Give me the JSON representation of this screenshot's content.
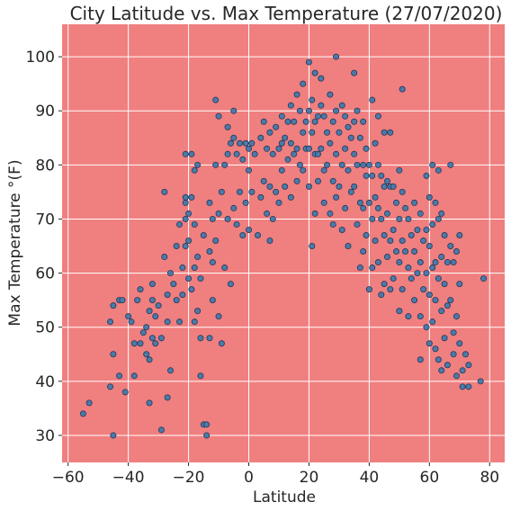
{
  "chart_data": {
    "type": "scatter",
    "title": "City Latitude vs. Max Temperature (27/07/2020)",
    "xlabel": "Latitude",
    "ylabel": "Max Temperature °(F)",
    "xlim": [
      -62,
      85
    ],
    "ylim": [
      25,
      106
    ],
    "xticks": [
      -60,
      -40,
      -20,
      0,
      20,
      40,
      60,
      80
    ],
    "yticks": [
      30,
      40,
      50,
      60,
      70,
      80,
      90,
      100
    ],
    "xtick_labels": [
      "−60",
      "−40",
      "−20",
      "0",
      "20",
      "40",
      "60",
      "80"
    ],
    "ytick_labels": [
      "30",
      "40",
      "50",
      "60",
      "70",
      "80",
      "90",
      "100"
    ],
    "grid": true,
    "colors": {
      "plot_background": "#f07f7f",
      "marker": "#4e79a7",
      "marker_edge": "#1f3a5c",
      "grid": "#ffffff"
    },
    "series": [
      {
        "points": [
          [
            -55,
            34
          ],
          [
            -53,
            36
          ],
          [
            -46,
            39
          ],
          [
            -46,
            51
          ],
          [
            -45,
            54
          ],
          [
            -45,
            45
          ],
          [
            -45,
            30
          ],
          [
            -43,
            55
          ],
          [
            -43,
            41
          ],
          [
            -42,
            55
          ],
          [
            -41,
            38
          ],
          [
            -40,
            52
          ],
          [
            -39,
            51
          ],
          [
            -38,
            47
          ],
          [
            -38,
            41
          ],
          [
            -37,
            55
          ],
          [
            -36,
            57
          ],
          [
            -36,
            47
          ],
          [
            -35,
            49
          ],
          [
            -34,
            50
          ],
          [
            -34,
            45
          ],
          [
            -33,
            53
          ],
          [
            -33,
            44
          ],
          [
            -33,
            36
          ],
          [
            -32,
            58
          ],
          [
            -32,
            55
          ],
          [
            -32,
            48
          ],
          [
            -31,
            52
          ],
          [
            -31,
            47
          ],
          [
            -30,
            54
          ],
          [
            -29,
            48
          ],
          [
            -28,
            63
          ],
          [
            -27,
            56
          ],
          [
            -27,
            51
          ],
          [
            -26,
            42
          ],
          [
            -28,
            75
          ],
          [
            -29,
            31
          ],
          [
            -27,
            37
          ],
          [
            -26,
            60
          ],
          [
            -25,
            58
          ],
          [
            -24,
            65
          ],
          [
            -24,
            55
          ],
          [
            -23,
            69
          ],
          [
            -23,
            51
          ],
          [
            -22,
            61
          ],
          [
            -22,
            56
          ],
          [
            -21,
            82
          ],
          [
            -21,
            74
          ],
          [
            -21,
            73
          ],
          [
            -21,
            70
          ],
          [
            -21,
            65
          ],
          [
            -20,
            71
          ],
          [
            -20,
            66
          ],
          [
            -20,
            59
          ],
          [
            -19,
            82
          ],
          [
            -19,
            74
          ],
          [
            -19,
            57
          ],
          [
            -18,
            79
          ],
          [
            -18,
            69
          ],
          [
            -18,
            61
          ],
          [
            -18,
            51
          ],
          [
            -17,
            80
          ],
          [
            -17,
            63
          ],
          [
            -17,
            53
          ],
          [
            -16,
            59
          ],
          [
            -16,
            48
          ],
          [
            -16,
            41
          ],
          [
            -15,
            67
          ],
          [
            -15,
            32
          ],
          [
            -14,
            32
          ],
          [
            -14,
            30
          ],
          [
            -13,
            73
          ],
          [
            -13,
            64
          ],
          [
            -13,
            48
          ],
          [
            -12,
            70
          ],
          [
            -12,
            62
          ],
          [
            -12,
            55
          ],
          [
            -11,
            92
          ],
          [
            -11,
            80
          ],
          [
            -11,
            66
          ],
          [
            -10,
            89
          ],
          [
            -10,
            71
          ],
          [
            -10,
            52
          ],
          [
            -9,
            75
          ],
          [
            -9,
            47
          ],
          [
            -8,
            80
          ],
          [
            -8,
            61
          ],
          [
            -7,
            87
          ],
          [
            -7,
            82
          ],
          [
            -7,
            70
          ],
          [
            -6,
            84
          ],
          [
            -6,
            58
          ],
          [
            -5,
            90
          ],
          [
            -5,
            85
          ],
          [
            -5,
            72
          ],
          [
            -4,
            82
          ],
          [
            -4,
            69
          ],
          [
            -3,
            84
          ],
          [
            -3,
            75
          ],
          [
            -2,
            81
          ],
          [
            -2,
            67
          ],
          [
            -1,
            84
          ],
          [
            -1,
            73
          ],
          [
            0,
            83
          ],
          [
            0,
            79
          ],
          [
            0,
            68
          ],
          [
            1,
            84
          ],
          [
            1,
            75
          ],
          [
            2,
            82
          ],
          [
            3,
            67
          ],
          [
            4,
            85
          ],
          [
            4,
            74
          ],
          [
            5,
            88
          ],
          [
            5,
            77
          ],
          [
            6,
            83
          ],
          [
            6,
            71
          ],
          [
            7,
            86
          ],
          [
            7,
            76
          ],
          [
            7,
            66
          ],
          [
            8,
            82
          ],
          [
            8,
            70
          ],
          [
            9,
            87
          ],
          [
            9,
            75
          ],
          [
            10,
            83
          ],
          [
            10,
            73
          ],
          [
            11,
            89
          ],
          [
            11,
            84
          ],
          [
            11,
            79
          ],
          [
            12,
            85
          ],
          [
            12,
            76
          ],
          [
            13,
            88
          ],
          [
            13,
            81
          ],
          [
            14,
            91
          ],
          [
            14,
            84
          ],
          [
            14,
            74
          ],
          [
            15,
            88
          ],
          [
            15,
            82
          ],
          [
            16,
            93
          ],
          [
            16,
            83
          ],
          [
            16,
            77
          ],
          [
            17,
            90
          ],
          [
            17,
            80
          ],
          [
            18,
            95
          ],
          [
            18,
            86
          ],
          [
            18,
            79
          ],
          [
            19,
            88
          ],
          [
            19,
            83
          ],
          [
            20,
            99
          ],
          [
            20,
            90
          ],
          [
            20,
            83
          ],
          [
            20,
            76
          ],
          [
            21,
            92
          ],
          [
            21,
            86
          ],
          [
            21,
            65
          ],
          [
            22,
            97
          ],
          [
            22,
            88
          ],
          [
            22,
            82
          ],
          [
            22,
            71
          ],
          [
            23,
            89
          ],
          [
            23,
            82
          ],
          [
            23,
            77
          ],
          [
            24,
            96
          ],
          [
            24,
            91
          ],
          [
            24,
            83
          ],
          [
            25,
            89
          ],
          [
            25,
            79
          ],
          [
            25,
            73
          ],
          [
            26,
            86
          ],
          [
            26,
            80
          ],
          [
            27,
            93
          ],
          [
            27,
            84
          ],
          [
            27,
            71
          ],
          [
            28,
            88
          ],
          [
            28,
            77
          ],
          [
            28,
            69
          ],
          [
            29,
            100
          ],
          [
            29,
            90
          ],
          [
            29,
            82
          ],
          [
            29,
            74
          ],
          [
            30,
            86
          ],
          [
            30,
            76
          ],
          [
            31,
            91
          ],
          [
            31,
            80
          ],
          [
            31,
            68
          ],
          [
            32,
            89
          ],
          [
            32,
            83
          ],
          [
            32,
            72
          ],
          [
            33,
            87
          ],
          [
            33,
            79
          ],
          [
            33,
            65
          ],
          [
            34,
            85
          ],
          [
            34,
            75
          ],
          [
            35,
            97
          ],
          [
            35,
            88
          ],
          [
            35,
            82
          ],
          [
            35,
            76
          ],
          [
            36,
            90
          ],
          [
            36,
            80
          ],
          [
            36,
            69
          ],
          [
            37,
            85
          ],
          [
            37,
            73
          ],
          [
            37,
            61
          ],
          [
            38,
            88
          ],
          [
            38,
            80
          ],
          [
            38,
            72
          ],
          [
            38,
            64
          ],
          [
            39,
            83
          ],
          [
            39,
            78
          ],
          [
            39,
            67
          ],
          [
            40,
            80
          ],
          [
            40,
            73
          ],
          [
            40,
            57
          ],
          [
            41,
            92
          ],
          [
            41,
            78
          ],
          [
            41,
            70
          ],
          [
            41,
            61
          ],
          [
            42,
            84
          ],
          [
            42,
            74
          ],
          [
            42,
            66
          ],
          [
            43,
            89
          ],
          [
            43,
            80
          ],
          [
            43,
            72
          ],
          [
            43,
            62
          ],
          [
            44,
            78
          ],
          [
            44,
            70
          ],
          [
            44,
            56
          ],
          [
            45,
            86
          ],
          [
            45,
            76
          ],
          [
            45,
            67
          ],
          [
            45,
            58
          ],
          [
            46,
            77
          ],
          [
            46,
            71
          ],
          [
            46,
            63
          ],
          [
            47,
            86
          ],
          [
            47,
            76
          ],
          [
            47,
            66
          ],
          [
            47,
            57
          ],
          [
            48,
            76
          ],
          [
            48,
            68
          ],
          [
            48,
            59
          ],
          [
            49,
            73
          ],
          [
            49,
            64
          ],
          [
            50,
            79
          ],
          [
            50,
            70
          ],
          [
            50,
            62
          ],
          [
            50,
            53
          ],
          [
            51,
            94
          ],
          [
            51,
            75
          ],
          [
            51,
            66
          ],
          [
            51,
            57
          ],
          [
            52,
            72
          ],
          [
            52,
            64
          ],
          [
            53,
            70
          ],
          [
            53,
            61
          ],
          [
            53,
            52
          ],
          [
            54,
            67
          ],
          [
            54,
            59
          ],
          [
            55,
            73
          ],
          [
            55,
            64
          ],
          [
            55,
            55
          ],
          [
            56,
            68
          ],
          [
            56,
            60
          ],
          [
            57,
            71
          ],
          [
            57,
            62
          ],
          [
            57,
            52
          ],
          [
            57,
            44
          ],
          [
            58,
            66
          ],
          [
            58,
            57
          ],
          [
            59,
            78
          ],
          [
            59,
            68
          ],
          [
            59,
            60
          ],
          [
            59,
            50
          ],
          [
            60,
            74
          ],
          [
            60,
            65
          ],
          [
            60,
            56
          ],
          [
            60,
            47
          ],
          [
            61,
            80
          ],
          [
            61,
            69
          ],
          [
            61,
            61
          ],
          [
            61,
            51
          ],
          [
            62,
            73
          ],
          [
            62,
            62
          ],
          [
            62,
            55
          ],
          [
            62,
            46
          ],
          [
            63,
            79
          ],
          [
            63,
            70
          ],
          [
            63,
            59
          ],
          [
            63,
            44
          ],
          [
            64,
            71
          ],
          [
            64,
            63
          ],
          [
            64,
            53
          ],
          [
            64,
            42
          ],
          [
            65,
            67
          ],
          [
            65,
            58
          ],
          [
            65,
            48
          ],
          [
            66,
            62
          ],
          [
            66,
            54
          ],
          [
            66,
            43
          ],
          [
            67,
            80
          ],
          [
            67,
            65
          ],
          [
            67,
            55
          ],
          [
            68,
            62
          ],
          [
            68,
            49
          ],
          [
            68,
            45
          ],
          [
            69,
            64
          ],
          [
            69,
            52
          ],
          [
            69,
            41
          ],
          [
            70,
            67
          ],
          [
            70,
            58
          ],
          [
            70,
            47
          ],
          [
            71,
            42
          ],
          [
            71,
            39
          ],
          [
            72,
            45
          ],
          [
            73,
            39
          ],
          [
            73,
            43
          ],
          [
            77,
            40
          ],
          [
            78,
            59
          ]
        ]
      }
    ]
  }
}
